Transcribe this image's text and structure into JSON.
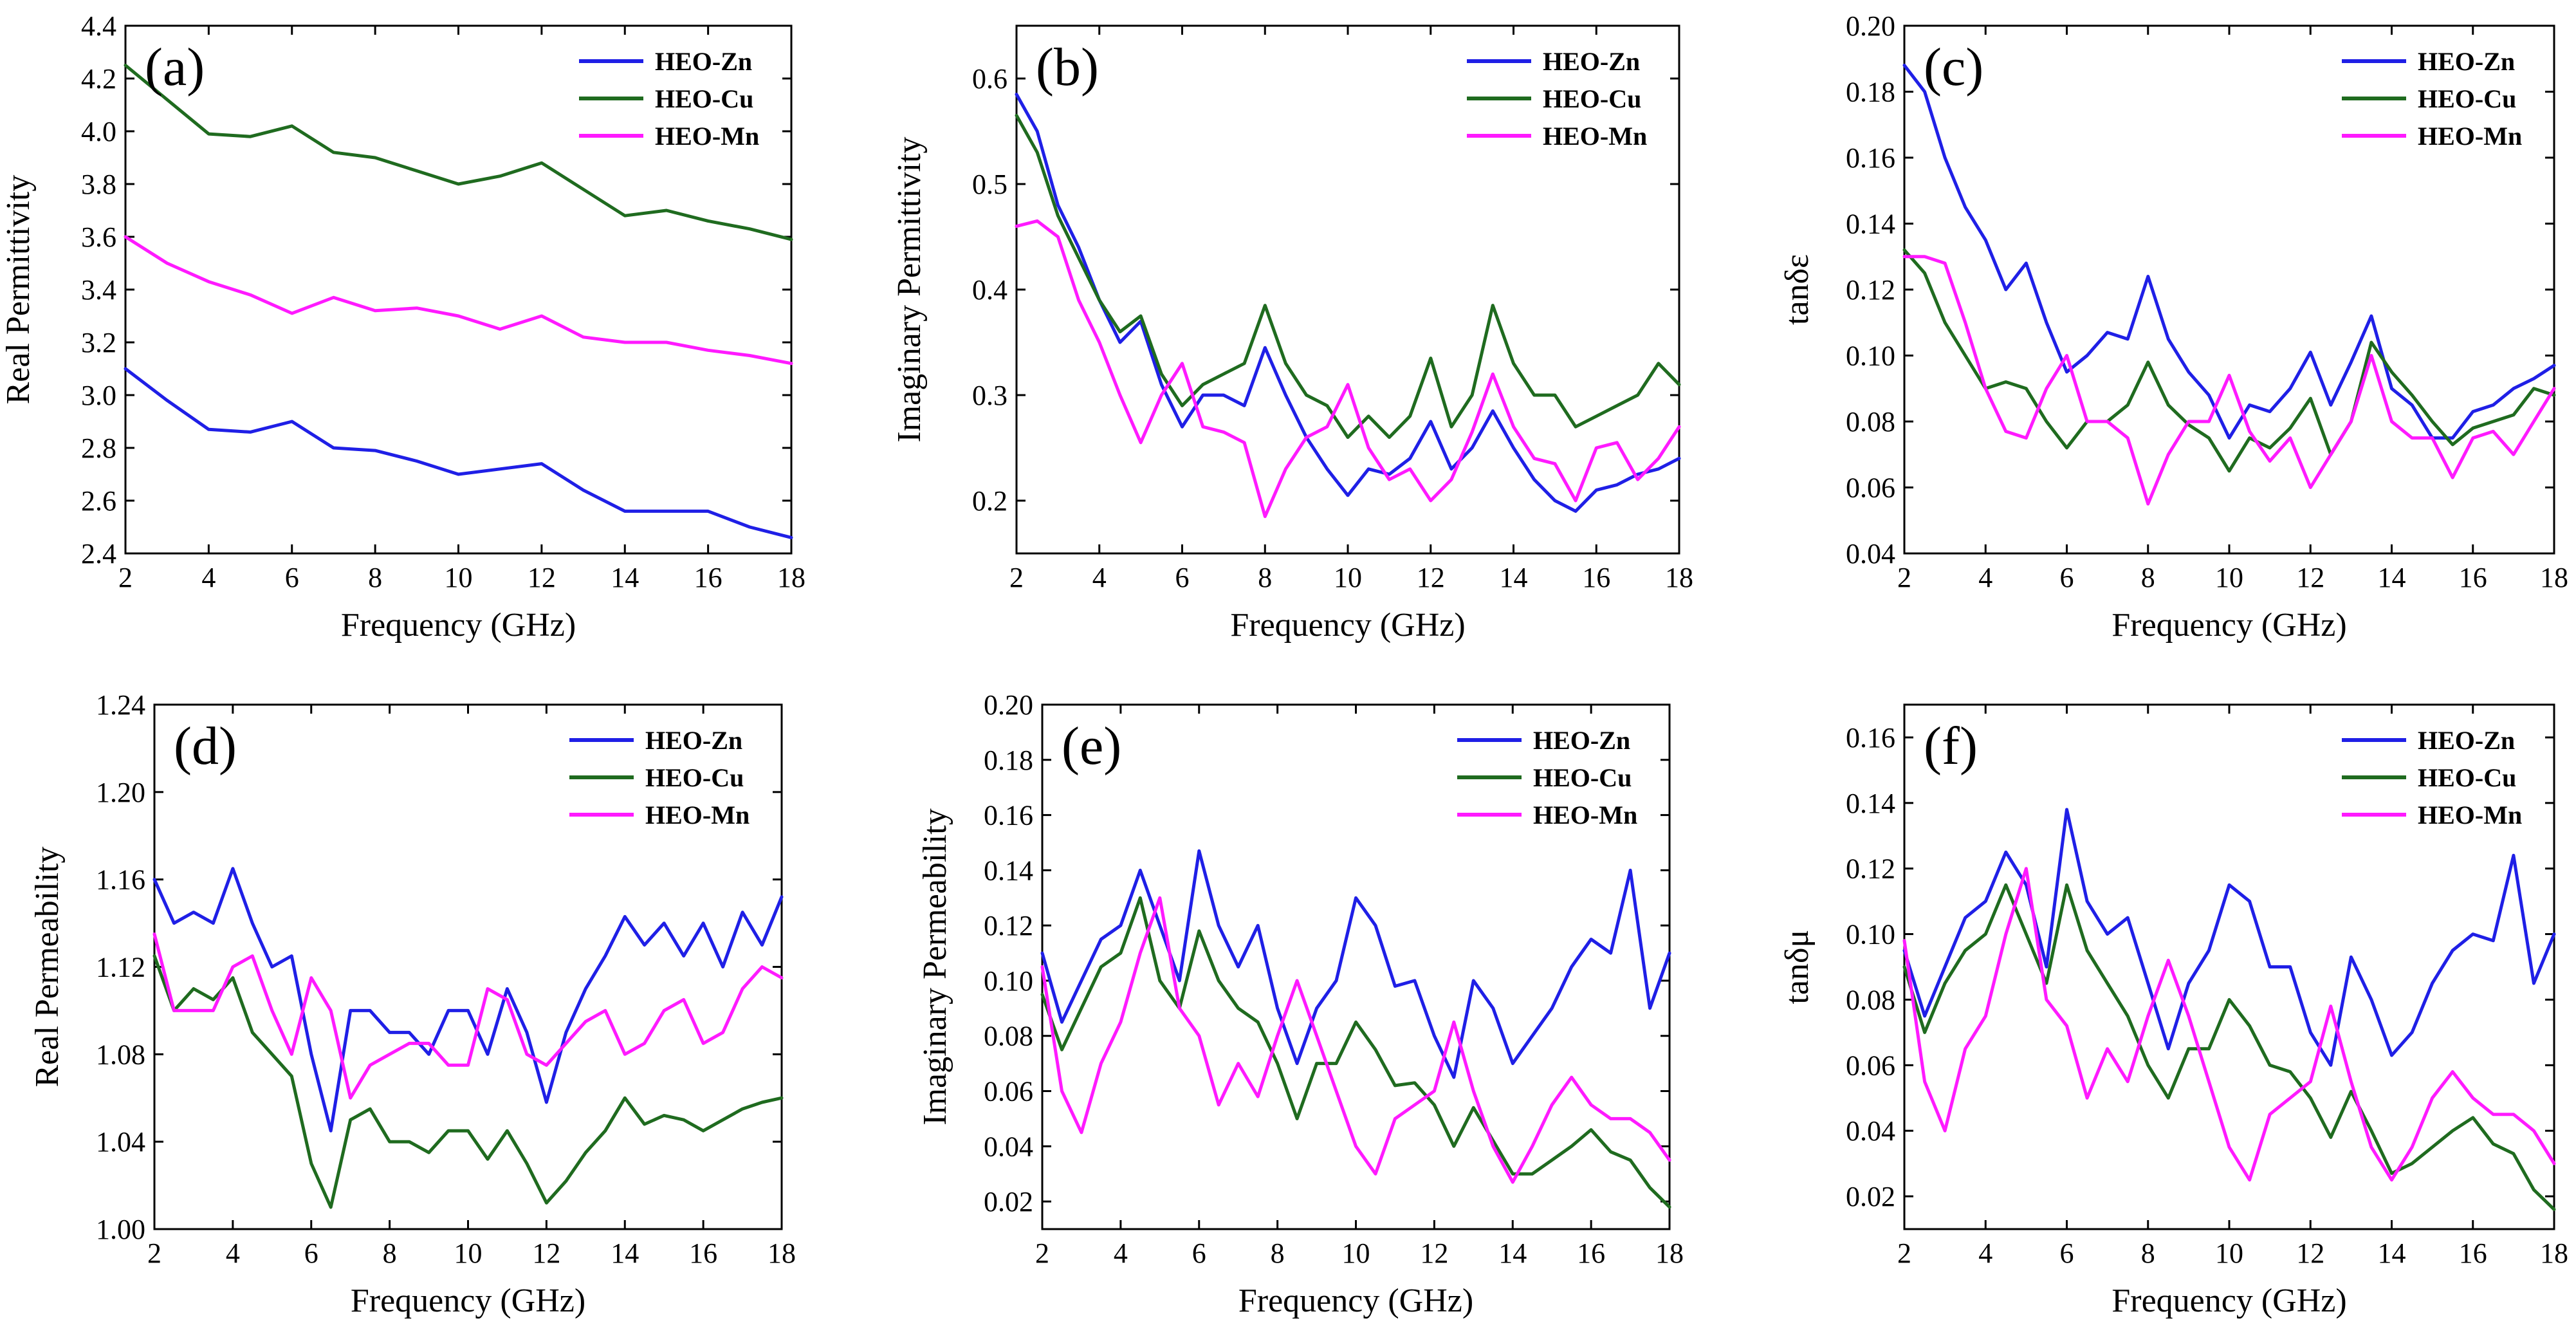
{
  "colors": {
    "HEO-Zn": "#1f1fe6",
    "HEO-Cu": "#1f6b1f",
    "HEO-Mn": "#ff1aff"
  },
  "chart_data": [
    {
      "panel": "(a)",
      "type": "line",
      "xlabel": "Frequency (GHz)",
      "ylabel": "Real Permittivity",
      "xlim": [
        2,
        18
      ],
      "ylim": [
        2.4,
        4.4
      ],
      "xticks": [
        "2",
        "4",
        "6",
        "8",
        "10",
        "12",
        "14",
        "16",
        "18"
      ],
      "yticks": [
        "2.4",
        "2.6",
        "2.8",
        "3.0",
        "3.2",
        "3.4",
        "3.6",
        "3.8",
        "4.0",
        "4.2",
        "4.4"
      ],
      "legend": [
        "HEO-Zn",
        "HEO-Cu",
        "HEO-Mn"
      ],
      "x": [
        2,
        3,
        4,
        5,
        6,
        7,
        8,
        9,
        10,
        11,
        12,
        13,
        14,
        15,
        16,
        17,
        18
      ],
      "series": [
        {
          "name": "HEO-Zn",
          "values": [
            3.1,
            2.98,
            2.87,
            2.86,
            2.9,
            2.8,
            2.79,
            2.75,
            2.7,
            2.72,
            2.74,
            2.64,
            2.56,
            2.56,
            2.56,
            2.5,
            2.46
          ]
        },
        {
          "name": "HEO-Cu",
          "values": [
            4.25,
            4.12,
            3.99,
            3.98,
            4.02,
            3.92,
            3.9,
            3.85,
            3.8,
            3.83,
            3.88,
            3.78,
            3.68,
            3.7,
            3.66,
            3.63,
            3.59
          ]
        },
        {
          "name": "HEO-Mn",
          "values": [
            3.6,
            3.5,
            3.43,
            3.38,
            3.31,
            3.37,
            3.32,
            3.33,
            3.3,
            3.25,
            3.3,
            3.22,
            3.2,
            3.2,
            3.17,
            3.15,
            3.12
          ]
        }
      ]
    },
    {
      "panel": "(b)",
      "type": "line",
      "xlabel": "Frequency (GHz)",
      "ylabel": "Imaginary Permittivity",
      "xlim": [
        2,
        18
      ],
      "ylim": [
        0.15,
        0.65
      ],
      "xticks": [
        "2",
        "4",
        "6",
        "8",
        "10",
        "12",
        "14",
        "16",
        "18"
      ],
      "yticks": [
        "0.2",
        "0.3",
        "0.4",
        "0.5",
        "0.6"
      ],
      "legend": [
        "HEO-Zn",
        "HEO-Cu",
        "HEO-Mn"
      ],
      "x": [
        2,
        2.5,
        3,
        3.5,
        4,
        4.5,
        5,
        5.5,
        6,
        6.5,
        7,
        7.5,
        8,
        8.5,
        9,
        9.5,
        10,
        10.5,
        11,
        11.5,
        12,
        12.5,
        13,
        13.5,
        14,
        14.5,
        15,
        15.5,
        16,
        16.5,
        17,
        17.5,
        18
      ],
      "series": [
        {
          "name": "HEO-Zn",
          "values": [
            0.585,
            0.55,
            0.48,
            0.44,
            0.39,
            0.35,
            0.37,
            0.31,
            0.27,
            0.3,
            0.3,
            0.29,
            0.345,
            0.3,
            0.26,
            0.23,
            0.205,
            0.23,
            0.225,
            0.24,
            0.275,
            0.23,
            0.25,
            0.285,
            0.25,
            0.22,
            0.2,
            0.19,
            0.21,
            0.215,
            0.225,
            0.23,
            0.24
          ]
        },
        {
          "name": "HEO-Cu",
          "values": [
            0.565,
            0.53,
            0.47,
            0.43,
            0.39,
            0.36,
            0.375,
            0.32,
            0.29,
            0.31,
            0.32,
            0.33,
            0.385,
            0.33,
            0.3,
            0.29,
            0.26,
            0.28,
            0.26,
            0.28,
            0.335,
            0.27,
            0.3,
            0.385,
            0.33,
            0.3,
            0.3,
            0.27,
            0.28,
            0.29,
            0.3,
            0.33,
            0.31
          ]
        },
        {
          "name": "HEO-Mn",
          "values": [
            0.46,
            0.465,
            0.45,
            0.39,
            0.35,
            0.3,
            0.255,
            0.3,
            0.33,
            0.27,
            0.265,
            0.255,
            0.185,
            0.23,
            0.26,
            0.27,
            0.31,
            0.25,
            0.22,
            0.23,
            0.2,
            0.22,
            0.265,
            0.32,
            0.27,
            0.24,
            0.235,
            0.2,
            0.25,
            0.255,
            0.22,
            0.24,
            0.27
          ]
        }
      ]
    },
    {
      "panel": "(c)",
      "type": "line",
      "xlabel": "Frequency (GHz)",
      "ylabel": "tanδε",
      "xlim": [
        2,
        18
      ],
      "ylim": [
        0.04,
        0.2
      ],
      "xticks": [
        "2",
        "4",
        "6",
        "8",
        "10",
        "12",
        "14",
        "16",
        "18"
      ],
      "yticks": [
        "0.04",
        "0.06",
        "0.08",
        "0.10",
        "0.12",
        "0.14",
        "0.16",
        "0.18",
        "0.20"
      ],
      "legend": [
        "HEO-Zn",
        "HEO-Cu",
        "HEO-Mn"
      ],
      "x": [
        2,
        2.5,
        3,
        3.5,
        4,
        4.5,
        5,
        5.5,
        6,
        6.5,
        7,
        7.5,
        8,
        8.5,
        9,
        9.5,
        10,
        10.5,
        11,
        11.5,
        12,
        12.5,
        13,
        13.5,
        14,
        14.5,
        15,
        15.5,
        16,
        16.5,
        17,
        17.5,
        18
      ],
      "series": [
        {
          "name": "HEO-Zn",
          "values": [
            0.188,
            0.18,
            0.16,
            0.145,
            0.135,
            0.12,
            0.128,
            0.11,
            0.095,
            0.1,
            0.107,
            0.105,
            0.124,
            0.105,
            0.095,
            0.088,
            0.075,
            0.085,
            0.083,
            0.09,
            0.101,
            0.085,
            0.098,
            0.112,
            0.09,
            0.085,
            0.075,
            0.075,
            0.083,
            0.085,
            0.09,
            0.093,
            0.097
          ]
        },
        {
          "name": "HEO-Cu",
          "values": [
            0.132,
            0.125,
            0.11,
            0.1,
            0.09,
            0.092,
            0.09,
            0.08,
            0.072,
            0.08,
            0.08,
            0.085,
            0.098,
            0.085,
            0.079,
            0.075,
            0.065,
            0.075,
            0.072,
            0.078,
            0.087,
            0.07,
            0.08,
            0.104,
            0.095,
            0.088,
            0.08,
            0.073,
            0.078,
            0.08,
            0.082,
            0.09,
            0.088
          ]
        },
        {
          "name": "HEO-Mn",
          "values": [
            0.13,
            0.13,
            0.128,
            0.11,
            0.09,
            0.077,
            0.075,
            0.09,
            0.1,
            0.08,
            0.08,
            0.075,
            0.055,
            0.07,
            0.08,
            0.08,
            0.094,
            0.077,
            0.068,
            0.075,
            0.06,
            0.07,
            0.08,
            0.1,
            0.08,
            0.075,
            0.075,
            0.063,
            0.075,
            0.077,
            0.07,
            0.08,
            0.09
          ]
        }
      ]
    },
    {
      "panel": "(d)",
      "type": "line",
      "xlabel": "Frequency (GHz)",
      "ylabel": "Real Permeability",
      "xlim": [
        2,
        18
      ],
      "ylim": [
        1.0,
        1.24
      ],
      "xticks": [
        "2",
        "4",
        "6",
        "8",
        "10",
        "12",
        "14",
        "16",
        "18"
      ],
      "yticks": [
        "1.00",
        "1.04",
        "1.08",
        "1.12",
        "1.16",
        "1.20",
        "1.24"
      ],
      "legend": [
        "HEO-Zn",
        "HEO-Cu",
        "HEO-Mn"
      ],
      "x": [
        2,
        2.5,
        3,
        3.5,
        4,
        4.5,
        5,
        5.5,
        6,
        6.5,
        7,
        7.5,
        8,
        8.5,
        9,
        9.5,
        10,
        10.5,
        11,
        11.5,
        12,
        12.5,
        13,
        13.5,
        14,
        14.5,
        15,
        15.5,
        16,
        16.5,
        17,
        17.5,
        18
      ],
      "series": [
        {
          "name": "HEO-Zn",
          "values": [
            1.16,
            1.14,
            1.145,
            1.14,
            1.165,
            1.14,
            1.12,
            1.125,
            1.08,
            1.045,
            1.1,
            1.1,
            1.09,
            1.09,
            1.08,
            1.1,
            1.1,
            1.08,
            1.11,
            1.09,
            1.058,
            1.09,
            1.11,
            1.125,
            1.143,
            1.13,
            1.14,
            1.125,
            1.14,
            1.12,
            1.145,
            1.13,
            1.152
          ]
        },
        {
          "name": "HEO-Cu",
          "values": [
            1.125,
            1.1,
            1.11,
            1.105,
            1.115,
            1.09,
            1.08,
            1.07,
            1.03,
            1.01,
            1.05,
            1.055,
            1.04,
            1.04,
            1.035,
            1.045,
            1.045,
            1.032,
            1.045,
            1.03,
            1.012,
            1.022,
            1.035,
            1.045,
            1.06,
            1.048,
            1.052,
            1.05,
            1.045,
            1.05,
            1.055,
            1.058,
            1.06
          ]
        },
        {
          "name": "HEO-Mn",
          "values": [
            1.135,
            1.1,
            1.1,
            1.1,
            1.12,
            1.125,
            1.1,
            1.08,
            1.115,
            1.1,
            1.06,
            1.075,
            1.08,
            1.085,
            1.085,
            1.075,
            1.075,
            1.11,
            1.105,
            1.08,
            1.075,
            1.085,
            1.095,
            1.1,
            1.08,
            1.085,
            1.1,
            1.105,
            1.085,
            1.09,
            1.11,
            1.12,
            1.115
          ]
        }
      ]
    },
    {
      "panel": "(e)",
      "type": "line",
      "xlabel": "Frequency (GHz)",
      "ylabel": "Imaginary Permeability",
      "xlim": [
        2,
        18
      ],
      "ylim": [
        0.01,
        0.2
      ],
      "xticks": [
        "2",
        "4",
        "6",
        "8",
        "10",
        "12",
        "14",
        "16",
        "18"
      ],
      "yticks": [
        "0.02",
        "0.04",
        "0.06",
        "0.08",
        "0.10",
        "0.12",
        "0.14",
        "0.16",
        "0.18",
        "0.20"
      ],
      "legend": [
        "HEO-Zn",
        "HEO-Cu",
        "HEO-Mn"
      ],
      "x": [
        2,
        2.5,
        3,
        3.5,
        4,
        4.5,
        5,
        5.5,
        6,
        6.5,
        7,
        7.5,
        8,
        8.5,
        9,
        9.5,
        10,
        10.5,
        11,
        11.5,
        12,
        12.5,
        13,
        13.5,
        14,
        14.5,
        15,
        15.5,
        16,
        16.5,
        17,
        17.5,
        18
      ],
      "series": [
        {
          "name": "HEO-Zn",
          "values": [
            0.11,
            0.085,
            0.1,
            0.115,
            0.12,
            0.14,
            0.12,
            0.1,
            0.147,
            0.12,
            0.105,
            0.12,
            0.09,
            0.07,
            0.09,
            0.1,
            0.13,
            0.12,
            0.098,
            0.1,
            0.08,
            0.065,
            0.1,
            0.09,
            0.07,
            0.08,
            0.09,
            0.105,
            0.115,
            0.11,
            0.14,
            0.09,
            0.11
          ]
        },
        {
          "name": "HEO-Cu",
          "values": [
            0.095,
            0.075,
            0.09,
            0.105,
            0.11,
            0.13,
            0.1,
            0.09,
            0.118,
            0.1,
            0.09,
            0.085,
            0.07,
            0.05,
            0.07,
            0.07,
            0.085,
            0.075,
            0.062,
            0.063,
            0.055,
            0.04,
            0.054,
            0.042,
            0.03,
            0.03,
            0.035,
            0.04,
            0.046,
            0.038,
            0.035,
            0.025,
            0.018
          ]
        },
        {
          "name": "HEO-Mn",
          "values": [
            0.105,
            0.06,
            0.045,
            0.07,
            0.085,
            0.11,
            0.13,
            0.09,
            0.08,
            0.055,
            0.07,
            0.058,
            0.08,
            0.1,
            0.08,
            0.06,
            0.04,
            0.03,
            0.05,
            0.055,
            0.06,
            0.085,
            0.06,
            0.04,
            0.027,
            0.04,
            0.055,
            0.065,
            0.055,
            0.05,
            0.05,
            0.045,
            0.035
          ]
        }
      ]
    },
    {
      "panel": "(f)",
      "type": "line",
      "xlabel": "Frequency (GHz)",
      "ylabel": "tanδμ",
      "xlim": [
        2,
        18
      ],
      "ylim": [
        0.01,
        0.17
      ],
      "xticks": [
        "2",
        "4",
        "6",
        "8",
        "10",
        "12",
        "14",
        "16",
        "18"
      ],
      "yticks": [
        "0.02",
        "0.04",
        "0.06",
        "0.08",
        "0.10",
        "0.12",
        "0.14",
        "0.16"
      ],
      "legend": [
        "HEO-Zn",
        "HEO-Cu",
        "HEO-Mn"
      ],
      "x": [
        2,
        2.5,
        3,
        3.5,
        4,
        4.5,
        5,
        5.5,
        6,
        6.5,
        7,
        7.5,
        8,
        8.5,
        9,
        9.5,
        10,
        10.5,
        11,
        11.5,
        12,
        12.5,
        13,
        13.5,
        14,
        14.5,
        15,
        15.5,
        16,
        16.5,
        17,
        17.5,
        18
      ],
      "series": [
        {
          "name": "HEO-Zn",
          "values": [
            0.095,
            0.075,
            0.09,
            0.105,
            0.11,
            0.125,
            0.115,
            0.09,
            0.138,
            0.11,
            0.1,
            0.105,
            0.085,
            0.065,
            0.085,
            0.095,
            0.115,
            0.11,
            0.09,
            0.09,
            0.07,
            0.06,
            0.093,
            0.08,
            0.063,
            0.07,
            0.085,
            0.095,
            0.1,
            0.098,
            0.124,
            0.085,
            0.1
          ]
        },
        {
          "name": "HEO-Cu",
          "values": [
            0.09,
            0.07,
            0.085,
            0.095,
            0.1,
            0.115,
            0.1,
            0.085,
            0.115,
            0.095,
            0.085,
            0.075,
            0.06,
            0.05,
            0.065,
            0.065,
            0.08,
            0.072,
            0.06,
            0.058,
            0.05,
            0.038,
            0.052,
            0.04,
            0.027,
            0.03,
            0.035,
            0.04,
            0.044,
            0.036,
            0.033,
            0.022,
            0.016
          ]
        },
        {
          "name": "HEO-Mn",
          "values": [
            0.098,
            0.055,
            0.04,
            0.065,
            0.075,
            0.1,
            0.12,
            0.08,
            0.072,
            0.05,
            0.065,
            0.055,
            0.075,
            0.092,
            0.075,
            0.055,
            0.035,
            0.025,
            0.045,
            0.05,
            0.055,
            0.078,
            0.055,
            0.035,
            0.025,
            0.035,
            0.05,
            0.058,
            0.05,
            0.045,
            0.045,
            0.04,
            0.03
          ]
        }
      ]
    }
  ]
}
